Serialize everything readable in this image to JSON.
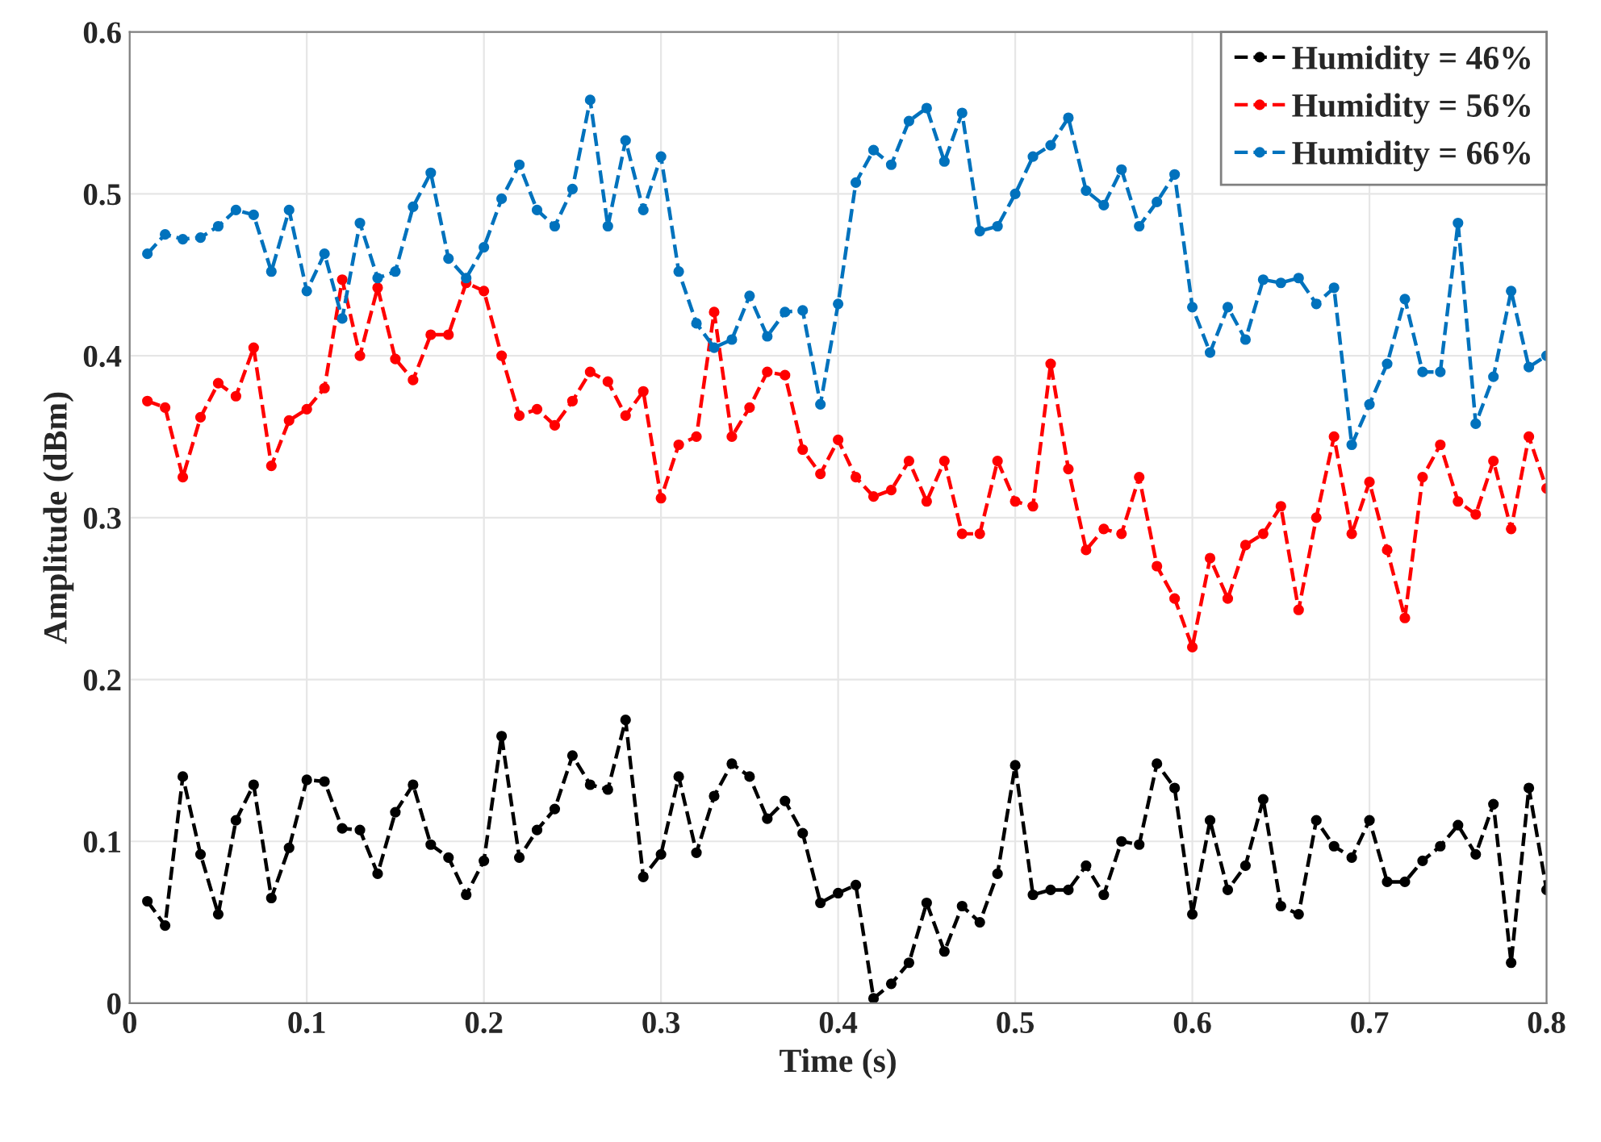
{
  "chart_data": {
    "type": "line",
    "xlabel": "Time (s)",
    "ylabel": "Amplitude (dBm)",
    "x": [
      0.01,
      0.02,
      0.03,
      0.04,
      0.05,
      0.06,
      0.07,
      0.08,
      0.09,
      0.1,
      0.11,
      0.12,
      0.13,
      0.14,
      0.15,
      0.16,
      0.17,
      0.18,
      0.19,
      0.2,
      0.21,
      0.22,
      0.23,
      0.24,
      0.25,
      0.26,
      0.27,
      0.28,
      0.29,
      0.3,
      0.31,
      0.32,
      0.33,
      0.34,
      0.35,
      0.36,
      0.37,
      0.38,
      0.39,
      0.4,
      0.41,
      0.42,
      0.43,
      0.44,
      0.45,
      0.46,
      0.47,
      0.48,
      0.49,
      0.5,
      0.51,
      0.52,
      0.53,
      0.54,
      0.55,
      0.56,
      0.57,
      0.58,
      0.59,
      0.6,
      0.61,
      0.62,
      0.63,
      0.64,
      0.65,
      0.66,
      0.67,
      0.68,
      0.69,
      0.7,
      0.71,
      0.72,
      0.73,
      0.74,
      0.75,
      0.76,
      0.77,
      0.78,
      0.79,
      0.8
    ],
    "series": [
      {
        "name": "Humidity = 46%",
        "color": "#000000",
        "values": [
          0.063,
          0.048,
          0.14,
          0.092,
          0.055,
          0.113,
          0.135,
          0.065,
          0.096,
          0.138,
          0.137,
          0.108,
          0.107,
          0.08,
          0.118,
          0.135,
          0.098,
          0.09,
          0.067,
          0.088,
          0.165,
          0.09,
          0.107,
          0.12,
          0.153,
          0.135,
          0.132,
          0.175,
          0.078,
          0.092,
          0.14,
          0.093,
          0.128,
          0.148,
          0.14,
          0.114,
          0.125,
          0.105,
          0.062,
          0.068,
          0.073,
          0.003,
          0.012,
          0.025,
          0.062,
          0.032,
          0.06,
          0.05,
          0.08,
          0.147,
          0.067,
          0.07,
          0.07,
          0.085,
          0.067,
          0.1,
          0.098,
          0.148,
          0.133,
          0.055,
          0.113,
          0.07,
          0.085,
          0.126,
          0.06,
          0.055,
          0.113,
          0.097,
          0.09,
          0.113,
          0.075,
          0.075,
          0.088,
          0.097,
          0.11,
          0.092,
          0.123,
          0.025,
          0.133,
          0.07
        ]
      },
      {
        "name": "Humidity = 56%",
        "color": "#ff0000",
        "values": [
          0.372,
          0.368,
          0.325,
          0.362,
          0.383,
          0.375,
          0.405,
          0.332,
          0.36,
          0.367,
          0.38,
          0.447,
          0.4,
          0.442,
          0.398,
          0.385,
          0.413,
          0.413,
          0.445,
          0.44,
          0.4,
          0.363,
          0.367,
          0.357,
          0.372,
          0.39,
          0.384,
          0.363,
          0.378,
          0.312,
          0.345,
          0.35,
          0.427,
          0.35,
          0.368,
          0.39,
          0.388,
          0.342,
          0.327,
          0.348,
          0.325,
          0.313,
          0.317,
          0.335,
          0.31,
          0.335,
          0.29,
          0.29,
          0.335,
          0.31,
          0.307,
          0.395,
          0.33,
          0.28,
          0.293,
          0.29,
          0.325,
          0.27,
          0.25,
          0.22,
          0.275,
          0.25,
          0.283,
          0.29,
          0.307,
          0.243,
          0.3,
          0.35,
          0.29,
          0.322,
          0.28,
          0.238,
          0.325,
          0.345,
          0.31,
          0.302,
          0.335,
          0.293,
          0.35,
          0.318
        ]
      },
      {
        "name": "Humidity = 66%",
        "color": "#0072bd",
        "values": [
          0.463,
          0.475,
          0.472,
          0.473,
          0.48,
          0.49,
          0.487,
          0.452,
          0.49,
          0.44,
          0.463,
          0.423,
          0.482,
          0.448,
          0.452,
          0.492,
          0.513,
          0.46,
          0.448,
          0.467,
          0.497,
          0.518,
          0.49,
          0.48,
          0.503,
          0.558,
          0.48,
          0.533,
          0.49,
          0.523,
          0.452,
          0.42,
          0.405,
          0.41,
          0.437,
          0.412,
          0.427,
          0.428,
          0.37,
          0.432,
          0.507,
          0.527,
          0.518,
          0.545,
          0.553,
          0.52,
          0.55,
          0.477,
          0.48,
          0.5,
          0.523,
          0.53,
          0.547,
          0.502,
          0.493,
          0.515,
          0.48,
          0.495,
          0.512,
          0.43,
          0.402,
          0.43,
          0.41,
          0.447,
          0.445,
          0.448,
          0.432,
          0.442,
          0.345,
          0.37,
          0.395,
          0.435,
          0.39,
          0.39,
          0.482,
          0.358,
          0.387,
          0.44,
          0.393,
          0.4
        ]
      }
    ],
    "xlim": [
      0,
      0.8
    ],
    "xticks": [
      0,
      0.1,
      0.2,
      0.3,
      0.4,
      0.5,
      0.6,
      0.7,
      0.8
    ],
    "ylim": [
      0,
      0.6
    ],
    "yticks": [
      0,
      0.1,
      0.2,
      0.3,
      0.4,
      0.5,
      0.6
    ],
    "grid": true,
    "legend": "top right",
    "marker": "circle",
    "line_style": "dashed"
  }
}
